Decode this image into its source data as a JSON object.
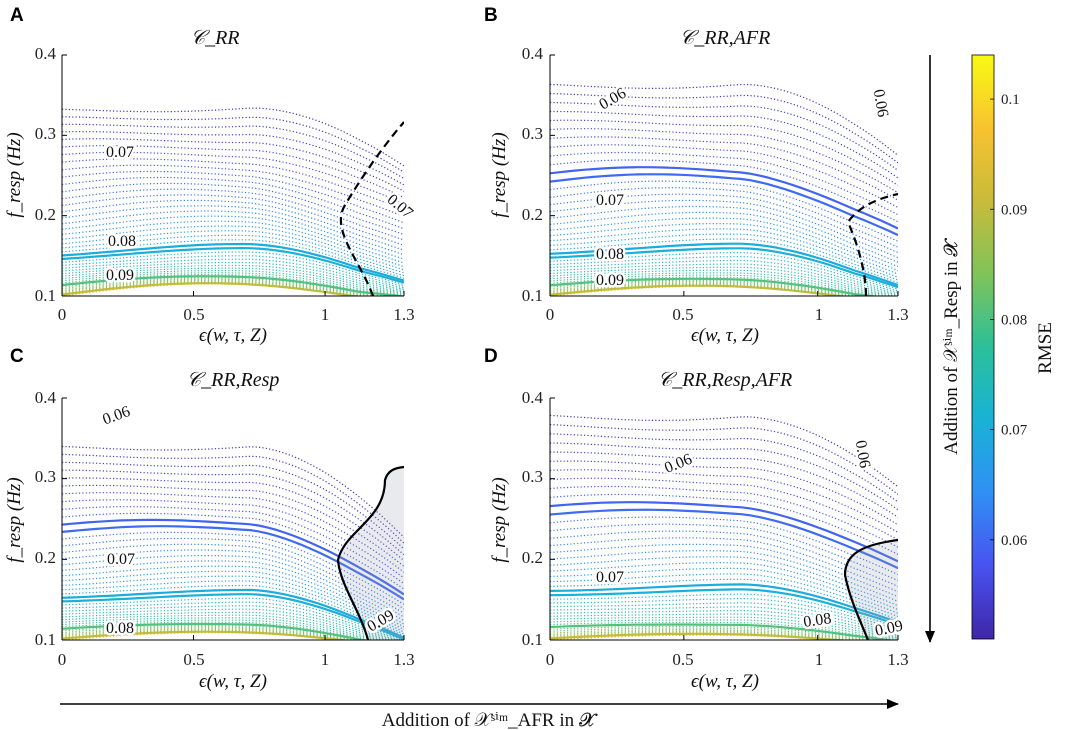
{
  "figure": {
    "bottom_arrow_label": "Addition of 𝒳ˢⁱᵐ_AFR in 𝓧",
    "right_arrow_label": "Addition of 𝒳ˢⁱᵐ_Resp in 𝓧"
  },
  "colorbar": {
    "label": "RMSE",
    "range": [
      0.051,
      0.104
    ],
    "ticks": [
      "0.06",
      "0.07",
      "0.08",
      "0.09",
      "0.1"
    ],
    "tick_values": [
      0.06,
      0.07,
      0.08,
      0.09,
      0.1
    ],
    "colormap": [
      "#3e26a8",
      "#4852f0",
      "#3090f5",
      "#19b2d6",
      "#2bc09a",
      "#80c359",
      "#c8bb3a",
      "#f8c230",
      "#f9fa14"
    ]
  },
  "chart_data": [
    {
      "panel": "A",
      "title": "𝒞_RR",
      "type": "contour",
      "xlabel": "ϵ(w, τ, Z)",
      "ylabel": "f_resp (Hz)",
      "xlim": [
        0,
        1.3
      ],
      "ylim": [
        0.1,
        0.4
      ],
      "xticks": [
        "0",
        "0.5",
        "1",
        "1.3"
      ],
      "yticks": [
        "0.1",
        "0.2",
        "0.3",
        "0.4"
      ],
      "contour_labels": [
        "0.07",
        "0.08",
        "0.09",
        "0.07"
      ],
      "labeled_levels": [
        0.07,
        0.08,
        0.09
      ],
      "boundary": "dashed"
    },
    {
      "panel": "B",
      "title": "𝒞_RR,AFR",
      "type": "contour",
      "xlabel": "ϵ(w, τ, Z)",
      "ylabel": "f_resp (Hz)",
      "xlim": [
        0,
        1.3
      ],
      "ylim": [
        0.1,
        0.4
      ],
      "xticks": [
        "0",
        "0.5",
        "1",
        "1.3"
      ],
      "yticks": [
        "0.1",
        "0.2",
        "0.3",
        "0.4"
      ],
      "contour_labels": [
        "0.06",
        "0.06",
        "0.07",
        "0.08",
        "0.09"
      ],
      "labeled_levels": [
        0.06,
        0.07,
        0.08,
        0.09
      ],
      "boundary": "dashed"
    },
    {
      "panel": "C",
      "title": "𝒞_RR,Resp",
      "type": "contour",
      "xlabel": "ϵ(w, τ, Z)",
      "ylabel": "f_resp (Hz)",
      "xlim": [
        0,
        1.3
      ],
      "ylim": [
        0.1,
        0.4
      ],
      "xticks": [
        "0",
        "0.5",
        "1",
        "1.3"
      ],
      "yticks": [
        "0.1",
        "0.2",
        "0.3",
        "0.4"
      ],
      "contour_labels": [
        "0.06",
        "0.07",
        "0.08",
        "0.09"
      ],
      "labeled_levels": [
        0.06,
        0.07,
        0.08,
        0.09
      ],
      "boundary": "solid"
    },
    {
      "panel": "D",
      "title": "𝒞_RR,Resp,AFR",
      "type": "contour",
      "xlabel": "ϵ(w, τ, Z)",
      "ylabel": "f_resp (Hz)",
      "xlim": [
        0,
        1.3
      ],
      "ylim": [
        0.1,
        0.4
      ],
      "xticks": [
        "0",
        "0.5",
        "1",
        "1.3"
      ],
      "yticks": [
        "0.1",
        "0.2",
        "0.3",
        "0.4"
      ],
      "contour_labels": [
        "0.06",
        "0.06",
        "0.07",
        "0.08",
        "0.09"
      ],
      "labeled_levels": [
        0.06,
        0.07,
        0.08,
        0.09
      ],
      "boundary": "solid"
    }
  ]
}
